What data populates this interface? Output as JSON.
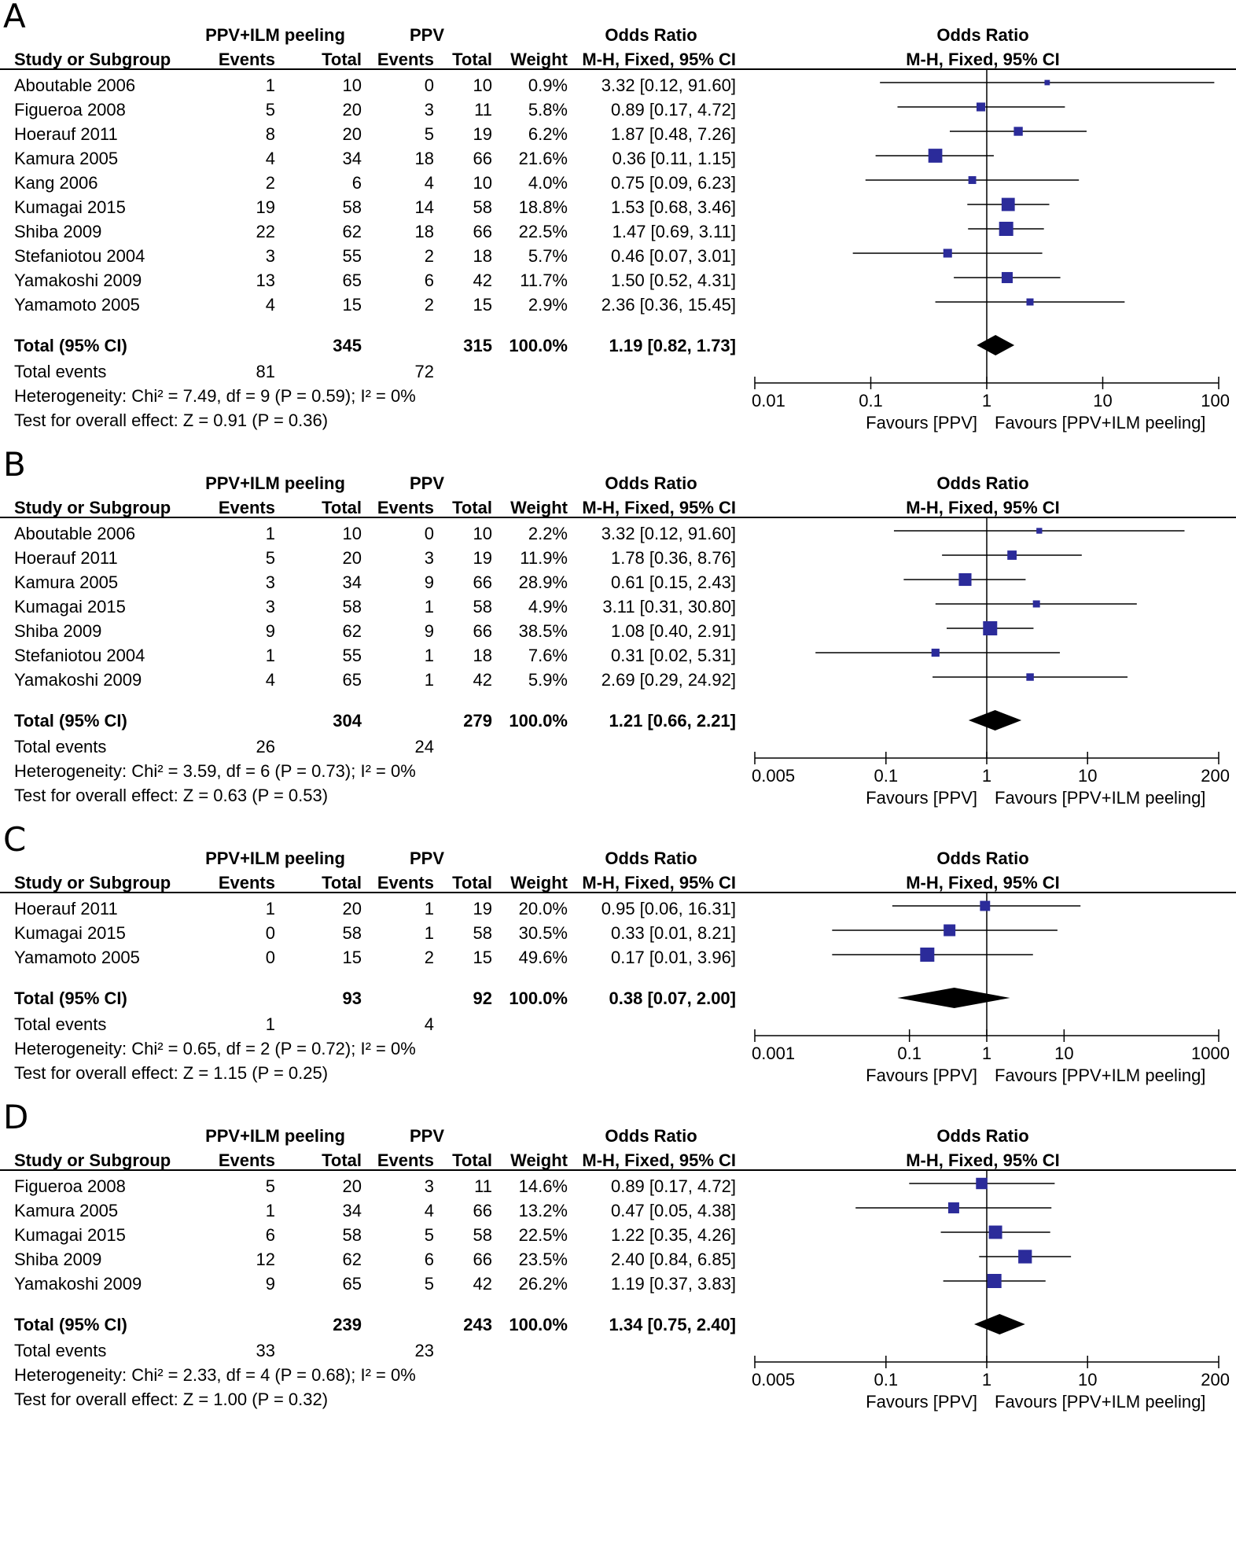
{
  "headers": {
    "group1": "PPV+ILM peeling",
    "group2": "PPV",
    "or_col": "Odds Ratio",
    "study": "Study or Subgroup",
    "events": "Events",
    "total": "Total",
    "weight": "Weight",
    "method": "M-H, Fixed, 95% CI"
  },
  "favours_left": "Favours [PPV]",
  "favours_right": "Favours [PPV+ILM peeling]",
  "chart_data": [
    {
      "type": "forest",
      "panel": "A",
      "axis_ticks": [
        0.01,
        0.1,
        1,
        10,
        100
      ],
      "axis_tick_labels": [
        "0.01",
        "0.1",
        "1",
        "10",
        "100"
      ],
      "xlim": [
        0.01,
        100
      ],
      "x_scale": "log",
      "studies": [
        {
          "name": "Aboutable 2006",
          "e1": "1",
          "t1": "10",
          "e2": "0",
          "t2": "10",
          "weight": "0.9%",
          "or_text": "3.32 [0.12, 91.60]",
          "or": 3.32,
          "lo": 0.12,
          "hi": 91.6
        },
        {
          "name": "Figueroa 2008",
          "e1": "5",
          "t1": "20",
          "e2": "3",
          "t2": "11",
          "weight": "5.8%",
          "or_text": "0.89 [0.17, 4.72]",
          "or": 0.89,
          "lo": 0.17,
          "hi": 4.72
        },
        {
          "name": "Hoerauf 2011",
          "e1": "8",
          "t1": "20",
          "e2": "5",
          "t2": "19",
          "weight": "6.2%",
          "or_text": "1.87 [0.48, 7.26]",
          "or": 1.87,
          "lo": 0.48,
          "hi": 7.26
        },
        {
          "name": "Kamura 2005",
          "e1": "4",
          "t1": "34",
          "e2": "18",
          "t2": "66",
          "weight": "21.6%",
          "or_text": "0.36 [0.11, 1.15]",
          "or": 0.36,
          "lo": 0.11,
          "hi": 1.15
        },
        {
          "name": "Kang 2006",
          "e1": "2",
          "t1": "6",
          "e2": "4",
          "t2": "10",
          "weight": "4.0%",
          "or_text": "0.75 [0.09, 6.23]",
          "or": 0.75,
          "lo": 0.09,
          "hi": 6.23
        },
        {
          "name": "Kumagai 2015",
          "e1": "19",
          "t1": "58",
          "e2": "14",
          "t2": "58",
          "weight": "18.8%",
          "or_text": "1.53 [0.68, 3.46]",
          "or": 1.53,
          "lo": 0.68,
          "hi": 3.46
        },
        {
          "name": "Shiba 2009",
          "e1": "22",
          "t1": "62",
          "e2": "18",
          "t2": "66",
          "weight": "22.5%",
          "or_text": "1.47 [0.69, 3.11]",
          "or": 1.47,
          "lo": 0.69,
          "hi": 3.11
        },
        {
          "name": "Stefaniotou 2004",
          "e1": "3",
          "t1": "55",
          "e2": "2",
          "t2": "18",
          "weight": "5.7%",
          "or_text": "0.46 [0.07, 3.01]",
          "or": 0.46,
          "lo": 0.07,
          "hi": 3.01
        },
        {
          "name": "Yamakoshi 2009",
          "e1": "13",
          "t1": "65",
          "e2": "6",
          "t2": "42",
          "weight": "11.7%",
          "or_text": "1.50 [0.52, 4.31]",
          "or": 1.5,
          "lo": 0.52,
          "hi": 4.31
        },
        {
          "name": "Yamamoto 2005",
          "e1": "4",
          "t1": "15",
          "e2": "2",
          "t2": "15",
          "weight": "2.9%",
          "or_text": "2.36 [0.36, 15.45]",
          "or": 2.36,
          "lo": 0.36,
          "hi": 15.45
        }
      ],
      "total": {
        "label": "Total (95% CI)",
        "t1": "345",
        "t2": "315",
        "weight": "100.0%",
        "or_text": "1.19 [0.82, 1.73]",
        "or": 1.19,
        "lo": 0.82,
        "hi": 1.73
      },
      "events": {
        "label": "Total events",
        "e1": "81",
        "e2": "72"
      },
      "heterogeneity": "Heterogeneity: Chi² = 7.49, df = 9 (P = 0.59); I² = 0%",
      "overall": "Test for overall effect: Z = 0.91 (P = 0.36)"
    },
    {
      "type": "forest",
      "panel": "B",
      "axis_ticks": [
        0.005,
        0.1,
        1,
        10,
        200
      ],
      "axis_tick_labels": [
        "0.005",
        "0.1",
        "1",
        "10",
        "200"
      ],
      "xlim": [
        0.005,
        200
      ],
      "x_scale": "log",
      "studies": [
        {
          "name": "Aboutable 2006",
          "e1": "1",
          "t1": "10",
          "e2": "0",
          "t2": "10",
          "weight": "2.2%",
          "or_text": "3.32 [0.12, 91.60]",
          "or": 3.32,
          "lo": 0.12,
          "hi": 91.6
        },
        {
          "name": "Hoerauf 2011",
          "e1": "5",
          "t1": "20",
          "e2": "3",
          "t2": "19",
          "weight": "11.9%",
          "or_text": "1.78 [0.36, 8.76]",
          "or": 1.78,
          "lo": 0.36,
          "hi": 8.76
        },
        {
          "name": "Kamura 2005",
          "e1": "3",
          "t1": "34",
          "e2": "9",
          "t2": "66",
          "weight": "28.9%",
          "or_text": "0.61 [0.15, 2.43]",
          "or": 0.61,
          "lo": 0.15,
          "hi": 2.43
        },
        {
          "name": "Kumagai 2015",
          "e1": "3",
          "t1": "58",
          "e2": "1",
          "t2": "58",
          "weight": "4.9%",
          "or_text": "3.11 [0.31, 30.80]",
          "or": 3.11,
          "lo": 0.31,
          "hi": 30.8
        },
        {
          "name": "Shiba 2009",
          "e1": "9",
          "t1": "62",
          "e2": "9",
          "t2": "66",
          "weight": "38.5%",
          "or_text": "1.08 [0.40, 2.91]",
          "or": 1.08,
          "lo": 0.4,
          "hi": 2.91
        },
        {
          "name": "Stefaniotou 2004",
          "e1": "1",
          "t1": "55",
          "e2": "1",
          "t2": "18",
          "weight": "7.6%",
          "or_text": "0.31 [0.02, 5.31]",
          "or": 0.31,
          "lo": 0.02,
          "hi": 5.31
        },
        {
          "name": "Yamakoshi 2009",
          "e1": "4",
          "t1": "65",
          "e2": "1",
          "t2": "42",
          "weight": "5.9%",
          "or_text": "2.69 [0.29, 24.92]",
          "or": 2.69,
          "lo": 0.29,
          "hi": 24.92
        }
      ],
      "total": {
        "label": "Total (95% CI)",
        "t1": "304",
        "t2": "279",
        "weight": "100.0%",
        "or_text": "1.21 [0.66, 2.21]",
        "or": 1.21,
        "lo": 0.66,
        "hi": 2.21
      },
      "events": {
        "label": "Total events",
        "e1": "26",
        "e2": "24"
      },
      "heterogeneity": "Heterogeneity: Chi² = 3.59, df = 6 (P = 0.73); I² = 0%",
      "overall": "Test for overall effect: Z = 0.63 (P = 0.53)"
    },
    {
      "type": "forest",
      "panel": "C",
      "axis_ticks": [
        0.001,
        0.1,
        1,
        10,
        1000
      ],
      "axis_tick_labels": [
        "0.001",
        "0.1",
        "1",
        "10",
        "1000"
      ],
      "xlim": [
        0.001,
        1000
      ],
      "x_scale": "log",
      "studies": [
        {
          "name": "Hoerauf 2011",
          "e1": "1",
          "t1": "20",
          "e2": "1",
          "t2": "19",
          "weight": "20.0%",
          "or_text": "0.95 [0.06, 16.31]",
          "or": 0.95,
          "lo": 0.06,
          "hi": 16.31
        },
        {
          "name": "Kumagai 2015",
          "e1": "0",
          "t1": "58",
          "e2": "1",
          "t2": "58",
          "weight": "30.5%",
          "or_text": "0.33 [0.01, 8.21]",
          "or": 0.33,
          "lo": 0.01,
          "hi": 8.21
        },
        {
          "name": "Yamamoto 2005",
          "e1": "0",
          "t1": "15",
          "e2": "2",
          "t2": "15",
          "weight": "49.6%",
          "or_text": "0.17 [0.01, 3.96]",
          "or": 0.17,
          "lo": 0.01,
          "hi": 3.96
        }
      ],
      "total": {
        "label": "Total (95% CI)",
        "t1": "93",
        "t2": "92",
        "weight": "100.0%",
        "or_text": "0.38 [0.07, 2.00]",
        "or": 0.38,
        "lo": 0.07,
        "hi": 2.0
      },
      "events": {
        "label": "Total events",
        "e1": "1",
        "e2": "4"
      },
      "heterogeneity": "Heterogeneity: Chi² = 0.65, df = 2 (P = 0.72); I² = 0%",
      "overall": "Test for overall effect: Z = 1.15 (P = 0.25)"
    },
    {
      "type": "forest",
      "panel": "D",
      "axis_ticks": [
        0.005,
        0.1,
        1,
        10,
        200
      ],
      "axis_tick_labels": [
        "0.005",
        "0.1",
        "1",
        "10",
        "200"
      ],
      "xlim": [
        0.005,
        200
      ],
      "x_scale": "log",
      "studies": [
        {
          "name": "Figueroa 2008",
          "e1": "5",
          "t1": "20",
          "e2": "3",
          "t2": "11",
          "weight": "14.6%",
          "or_text": "0.89 [0.17, 4.72]",
          "or": 0.89,
          "lo": 0.17,
          "hi": 4.72
        },
        {
          "name": "Kamura 2005",
          "e1": "1",
          "t1": "34",
          "e2": "4",
          "t2": "66",
          "weight": "13.2%",
          "or_text": "0.47 [0.05, 4.38]",
          "or": 0.47,
          "lo": 0.05,
          "hi": 4.38
        },
        {
          "name": "Kumagai 2015",
          "e1": "6",
          "t1": "58",
          "e2": "5",
          "t2": "58",
          "weight": "22.5%",
          "or_text": "1.22 [0.35, 4.26]",
          "or": 1.22,
          "lo": 0.35,
          "hi": 4.26
        },
        {
          "name": "Shiba 2009",
          "e1": "12",
          "t1": "62",
          "e2": "6",
          "t2": "66",
          "weight": "23.5%",
          "or_text": "2.40 [0.84, 6.85]",
          "or": 2.4,
          "lo": 0.84,
          "hi": 6.85
        },
        {
          "name": "Yamakoshi 2009",
          "e1": "9",
          "t1": "65",
          "e2": "5",
          "t2": "42",
          "weight": "26.2%",
          "or_text": "1.19 [0.37, 3.83]",
          "or": 1.19,
          "lo": 0.37,
          "hi": 3.83
        }
      ],
      "total": {
        "label": "Total (95% CI)",
        "t1": "239",
        "t2": "243",
        "weight": "100.0%",
        "or_text": "1.34 [0.75, 2.40]",
        "or": 1.34,
        "lo": 0.75,
        "hi": 2.4
      },
      "events": {
        "label": "Total events",
        "e1": "33",
        "e2": "23"
      },
      "heterogeneity": "Heterogeneity: Chi² = 2.33, df = 4 (P = 0.68); I² = 0%",
      "overall": "Test for overall effect: Z = 1.00 (P = 0.32)"
    }
  ]
}
